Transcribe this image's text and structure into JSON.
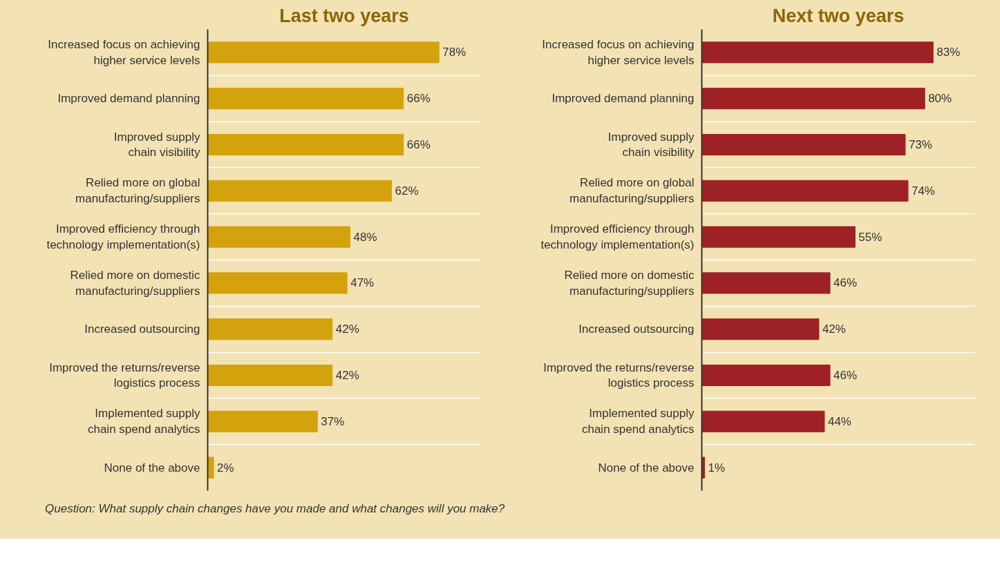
{
  "chart_data": [
    {
      "type": "bar",
      "orientation": "horizontal",
      "title": "Last two years",
      "grid": "y",
      "categories": [
        "Increased focus on achieving higher service levels",
        "Improved demand planning",
        "Improved supply chain visibility",
        "Relied more on global manufacturing/suppliers",
        "Improved efficiency through technology implementation(s)",
        "Relied more on domestic manufacturing/suppliers",
        "Increased outsourcing",
        "Improved the returns/reverse logistics process",
        "Implemented supply chain spend analytics",
        "None of the above"
      ],
      "series": [
        {
          "color": "#d4a20c",
          "values": [
            78,
            66,
            66,
            62,
            48,
            47,
            42,
            42,
            37,
            2
          ],
          "value_labels": [
            "78%",
            "66%",
            "66%",
            "62%",
            "48%",
            "47%",
            "42%",
            "42%",
            "37%",
            "2%"
          ]
        }
      ],
      "annotations": [
        "Question: What supply chain changes have you made and what changes will you make?"
      ]
    },
    {
      "type": "bar",
      "orientation": "horizontal",
      "title": "Next two years",
      "grid": "y",
      "categories": [
        "Increased focus on achieving higher service levels",
        "Improved demand planning",
        "Improved supply chain visibility",
        "Relied more on global manufacturing/suppliers",
        "Improved efficiency through technology implementation(s)",
        "Relied more on domestic manufacturing/suppliers",
        "Increased outsourcing",
        "Improved the returns/reverse logistics process",
        "Implemented supply chain spend analytics",
        "None of the above"
      ],
      "series": [
        {
          "color": "#9e2126",
          "values": [
            83,
            80,
            73,
            74,
            55,
            46,
            42,
            46,
            44,
            1
          ],
          "value_labels": [
            "83%",
            "80%",
            "73%",
            "74%",
            "55%",
            "46%",
            "42%",
            "46%",
            "44%",
            "1%"
          ]
        }
      ]
    }
  ]
}
